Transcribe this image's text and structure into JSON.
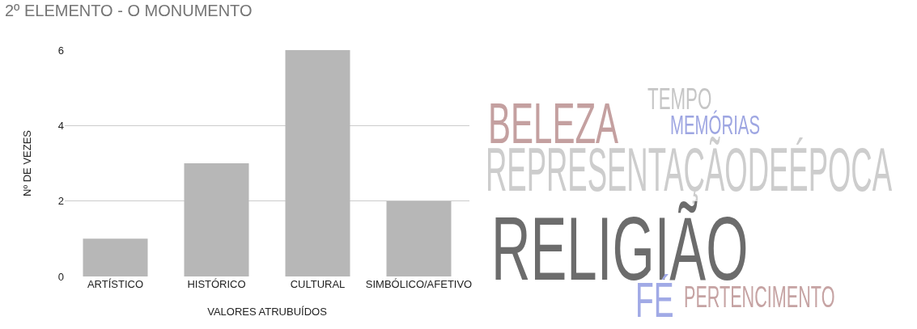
{
  "chart_data": [
    {
      "type": "bar",
      "title": "2º ELEMENTO - O MONUMENTO",
      "xlabel": "VALORES ATRUBUÍDOS",
      "ylabel": "Nº DE VEZES",
      "categories": [
        "ARTÍSTICO",
        "HISTÓRICO",
        "CULTURAL",
        "SIMBÓLICO/AFETIVO"
      ],
      "values": [
        1,
        3,
        6,
        2
      ],
      "color": "#b7b7b7",
      "ylim": [
        0,
        6
      ],
      "yticks": [
        0,
        2,
        4,
        6
      ],
      "grid": "y"
    },
    {
      "type": "other",
      "annotations": [
        "TEMPO",
        "BELEZA",
        "MEMÓRIAS",
        "REPRESENTAÇÃODEÉPOCA",
        "RELIGIÃO",
        "FÉ",
        "PERTENCIMENTO"
      ]
    }
  ]
}
